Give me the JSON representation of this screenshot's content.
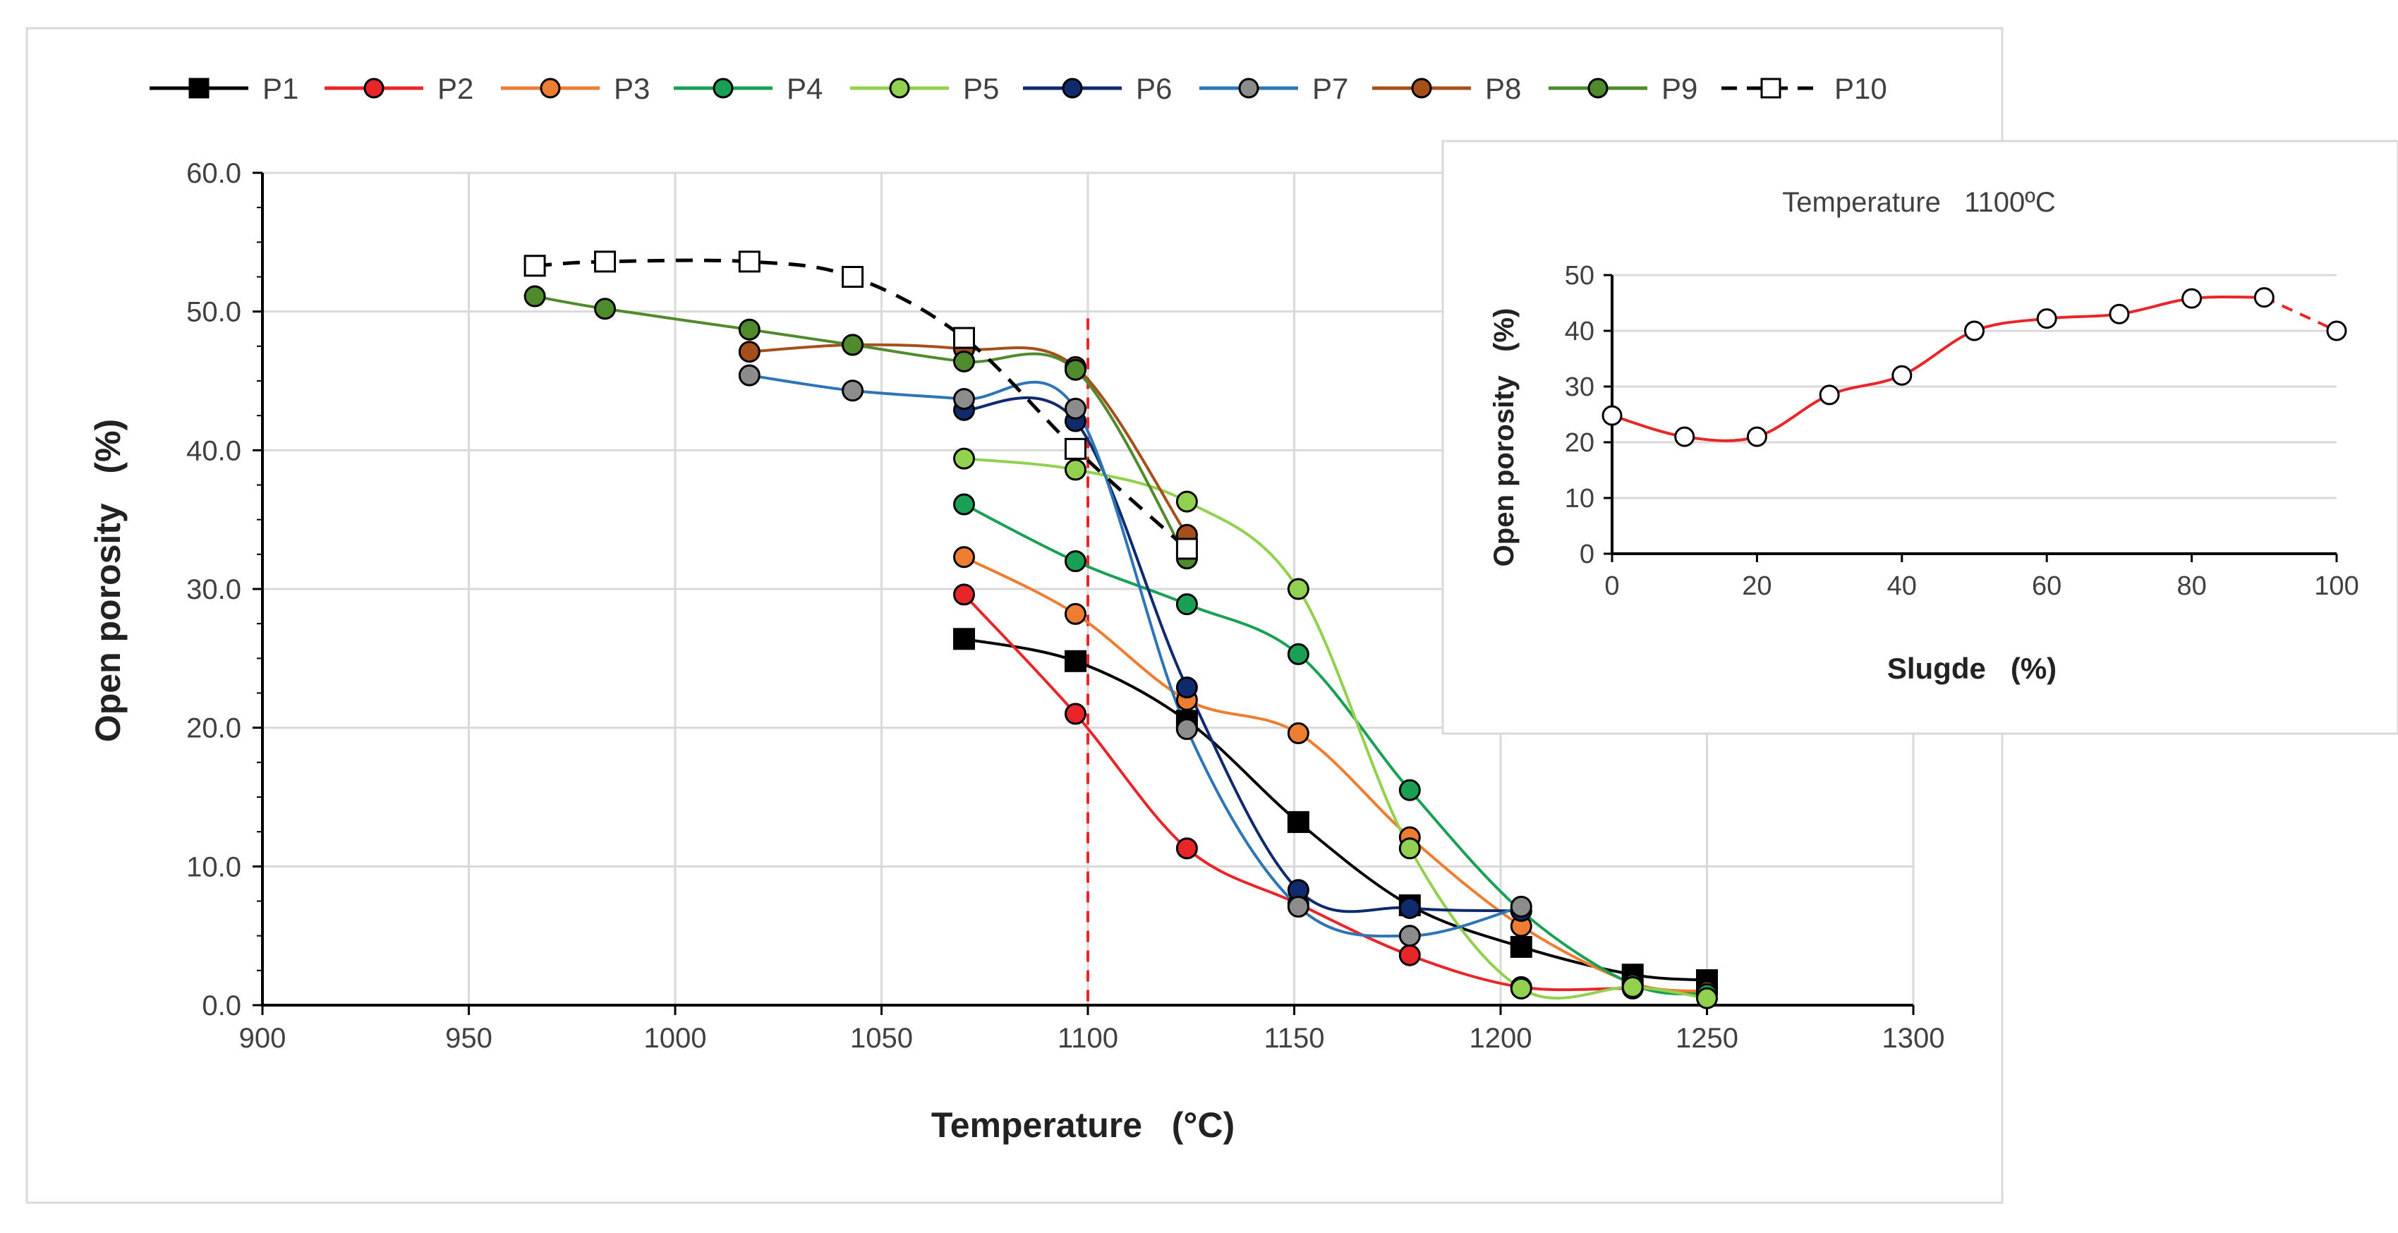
{
  "chart_data": [
    {
      "type": "line",
      "xlabel": "Temperature   (°C)",
      "ylabel": "Open porosity   (%)",
      "xlim": [
        900,
        1300
      ],
      "ylim": [
        0,
        60
      ],
      "x_ticks": [
        "900",
        "950",
        "1000",
        "1050",
        "1100",
        "1150",
        "1200",
        "1250",
        "1300"
      ],
      "y_ticks": [
        "0.0",
        "10.0",
        "20.0",
        "30.0",
        "40.0",
        "50.0",
        "60.0"
      ],
      "grid": "vertical-and-horizontal",
      "legend_position": "top",
      "reference_line": {
        "x": 1100,
        "color": "#e8262a",
        "style": "dashed"
      },
      "series": [
        {
          "name": "P1",
          "color": "#000000",
          "marker": "square-filled",
          "dash": false,
          "points": [
            [
              1070,
              26.4
            ],
            [
              1097,
              24.8
            ],
            [
              1124,
              20.5
            ],
            [
              1151,
              13.2
            ],
            [
              1178,
              7.2
            ],
            [
              1205,
              4.2
            ],
            [
              1232,
              2.2
            ],
            [
              1250,
              1.8
            ]
          ]
        },
        {
          "name": "P2",
          "color": "#e8262a",
          "marker": "circle",
          "dash": false,
          "points": [
            [
              1070,
              29.6
            ],
            [
              1097,
              21.0
            ],
            [
              1124,
              11.3
            ],
            [
              1151,
              7.3
            ],
            [
              1178,
              3.6
            ],
            [
              1205,
              1.3
            ],
            [
              1232,
              1.2
            ],
            [
              1250,
              0.9
            ]
          ]
        },
        {
          "name": "P3",
          "color": "#ed7d31",
          "marker": "circle",
          "dash": false,
          "points": [
            [
              1070,
              32.3
            ],
            [
              1097,
              28.2
            ],
            [
              1124,
              22.0
            ],
            [
              1151,
              19.6
            ],
            [
              1178,
              12.1
            ],
            [
              1205,
              5.7
            ],
            [
              1232,
              1.6
            ],
            [
              1250,
              1.0
            ]
          ]
        },
        {
          "name": "P4",
          "color": "#1aa055",
          "marker": "circle",
          "dash": false,
          "points": [
            [
              1070,
              36.1
            ],
            [
              1097,
              32.0
            ],
            [
              1124,
              28.9
            ],
            [
              1151,
              25.3
            ],
            [
              1178,
              15.5
            ],
            [
              1205,
              6.8
            ],
            [
              1232,
              1.5
            ],
            [
              1250,
              0.8
            ]
          ]
        },
        {
          "name": "P5",
          "color": "#92d050",
          "marker": "circle",
          "dash": false,
          "points": [
            [
              1070,
              39.4
            ],
            [
              1097,
              38.6
            ],
            [
              1124,
              36.3
            ],
            [
              1151,
              30.0
            ],
            [
              1178,
              11.3
            ],
            [
              1205,
              1.2
            ],
            [
              1232,
              1.3
            ],
            [
              1250,
              0.5
            ]
          ]
        },
        {
          "name": "P6",
          "color": "#0f2b6e",
          "marker": "circle",
          "dash": false,
          "points": [
            [
              1070,
              42.9
            ],
            [
              1097,
              42.1
            ],
            [
              1124,
              22.9
            ],
            [
              1151,
              8.3
            ],
            [
              1178,
              7.0
            ],
            [
              1205,
              6.8
            ]
          ]
        },
        {
          "name": "P7",
          "color": "#2e75b6",
          "marker": "circle-grey",
          "dash": false,
          "points": [
            [
              1018,
              45.4
            ],
            [
              1043,
              44.3
            ],
            [
              1070,
              43.7
            ],
            [
              1097,
              43.0
            ],
            [
              1124,
              19.9
            ],
            [
              1151,
              7.1
            ],
            [
              1178,
              5.0
            ],
            [
              1205,
              7.1
            ]
          ]
        },
        {
          "name": "P8",
          "color": "#a5501b",
          "marker": "circle",
          "dash": false,
          "points": [
            [
              1018,
              47.1
            ],
            [
              1043,
              47.6
            ],
            [
              1070,
              47.3
            ],
            [
              1097,
              46.0
            ],
            [
              1124,
              33.9
            ]
          ]
        },
        {
          "name": "P9",
          "color": "#4f8a2c",
          "marker": "circle",
          "dash": false,
          "points": [
            [
              966,
              51.1
            ],
            [
              983,
              50.2
            ],
            [
              1018,
              48.7
            ],
            [
              1043,
              47.6
            ],
            [
              1070,
              46.4
            ],
            [
              1097,
              45.8
            ],
            [
              1124,
              32.2
            ]
          ]
        },
        {
          "name": "P10",
          "color": "#000000",
          "marker": "square-open",
          "dash": true,
          "points": [
            [
              966,
              53.3
            ],
            [
              983,
              53.6
            ],
            [
              1018,
              53.6
            ],
            [
              1043,
              52.5
            ],
            [
              1070,
              48.1
            ],
            [
              1097,
              40.1
            ],
            [
              1124,
              32.9
            ]
          ]
        }
      ]
    },
    {
      "type": "line",
      "title": "Temperature   1100ºC",
      "xlabel": "Slugde   (%)",
      "ylabel": "Open porosity   (%)",
      "xlim": [
        0,
        100
      ],
      "ylim": [
        0,
        50
      ],
      "x_ticks": [
        "0",
        "20",
        "40",
        "60",
        "80",
        "100"
      ],
      "y_ticks": [
        "0",
        "10",
        "20",
        "30",
        "40",
        "50"
      ],
      "grid": "horizontal",
      "series": [
        {
          "color": "#e8262a",
          "marker": "circle-open",
          "x": [
            0,
            10,
            20,
            30,
            40,
            50,
            60,
            70,
            80,
            90,
            100
          ],
          "y": [
            24.8,
            21.0,
            21.0,
            28.5,
            32.0,
            40.0,
            42.2,
            43.0,
            45.8,
            46.0,
            40.0
          ],
          "dashed_last_segment": true
        }
      ]
    }
  ]
}
